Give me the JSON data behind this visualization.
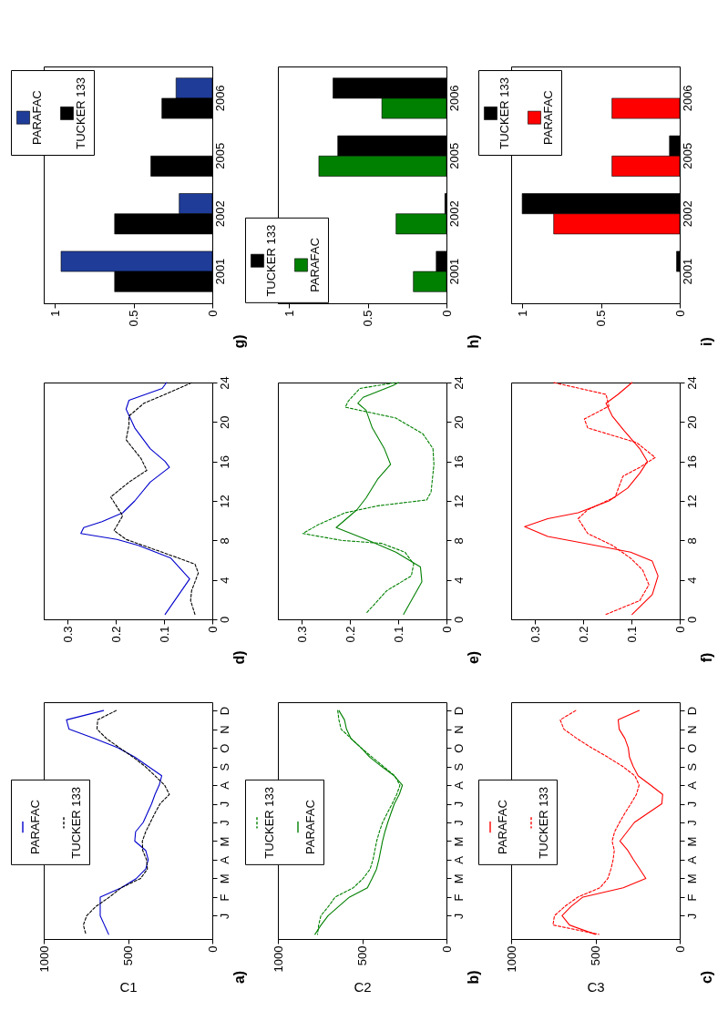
{
  "chart_data": [
    {
      "type": "bar",
      "orientation": "horizontal",
      "annotations": [
        "g)"
      ],
      "categories": [
        "2006",
        "2005",
        "2002",
        "2001"
      ],
      "xlim": [
        1.07,
        0
      ],
      "xticks": [
        0,
        0.5,
        1
      ],
      "legend": "top left",
      "series": [
        {
          "name": "PARAFAC",
          "color": "#1f3c99",
          "values": [
            0.23,
            null,
            0.21,
            0.96
          ]
        },
        {
          "name": "TUCKER 133",
          "color": "#000000",
          "values": [
            0.32,
            0.39,
            0.62,
            0.62
          ]
        }
      ]
    },
    {
      "type": "bar",
      "orientation": "horizontal",
      "annotations": [
        "h)"
      ],
      "categories": [
        "2006",
        "2005",
        "2002",
        "2001"
      ],
      "xlim": [
        1.07,
        0
      ],
      "xticks": [
        0,
        0.5,
        1
      ],
      "legend": "bottom left",
      "series": [
        {
          "name": "TUCKER 133",
          "color": "#000000",
          "values": [
            0.72,
            0.69,
            0.01,
            0.065
          ]
        },
        {
          "name": "PARAFAC",
          "color": "#008000",
          "values": [
            0.41,
            0.81,
            0.32,
            0.21
          ]
        }
      ]
    },
    {
      "type": "bar",
      "orientation": "horizontal",
      "annotations": [
        "i)"
      ],
      "categories": [
        "2006",
        "2005",
        "2002",
        "2001"
      ],
      "xlim": [
        1.07,
        0
      ],
      "xticks": [
        0,
        0.5,
        1
      ],
      "legend": "top left",
      "series": [
        {
          "name": "TUCKER 133",
          "color": "#000000",
          "values": [
            null,
            0.065,
            1.0,
            0.02
          ]
        },
        {
          "name": "PARAFAC",
          "color": "#ff0000",
          "values": [
            0.43,
            0.43,
            0.8,
            null
          ]
        }
      ]
    },
    {
      "type": "line",
      "annotations": [
        "d)"
      ],
      "xlim": [
        0.35,
        0
      ],
      "xticks": [
        0,
        0.1,
        0.2,
        0.3
      ],
      "ylim": [
        0,
        24
      ],
      "yticks": [
        0,
        4,
        8,
        12,
        16,
        20,
        24
      ],
      "series": [
        {
          "color": "#0000cc",
          "line_style": "solid",
          "x": [
            0.098,
            0.047,
            0.086,
            0.154,
            0.198,
            0.273,
            0.267,
            0.229,
            0.186,
            0.161,
            0.129,
            0.089,
            0.098,
            0.129,
            0.161,
            0.179,
            0.173,
            0.104,
            0.095
          ],
          "values": [
            0.5,
            4.1,
            6.2,
            7.5,
            8.1,
            8.7,
            9.3,
            9.9,
            10.8,
            12,
            13.9,
            15.4,
            16,
            17.3,
            19.4,
            21.3,
            22.2,
            23.4,
            24
          ]
        },
        {
          "color": "#000000",
          "line_style": "dashed",
          "x": [
            0.036,
            0.045,
            0.043,
            0.029,
            0.036,
            0.104,
            0.179,
            0.204,
            0.186,
            0.211,
            0.173,
            0.136,
            0.148,
            0.179,
            0.173,
            0.173,
            0.142,
            0.098,
            0.042
          ],
          "values": [
            0.5,
            1.9,
            2.9,
            4.7,
            5.6,
            6.8,
            8.1,
            9,
            10.5,
            12.4,
            13.9,
            15.1,
            16.3,
            18.2,
            19.7,
            20.6,
            21.9,
            22.8,
            24
          ]
        }
      ]
    },
    {
      "type": "line",
      "annotations": [
        "e)"
      ],
      "xlim": [
        0.35,
        0
      ],
      "xticks": [
        0,
        0.1,
        0.2,
        0.3
      ],
      "ylim": [
        0,
        24
      ],
      "yticks": [
        0,
        4,
        8,
        12,
        16,
        20,
        24
      ],
      "series": [
        {
          "color": "#008000",
          "line_style": "solid",
          "x": [
            0.089,
            0.051,
            0.054,
            0.105,
            0.167,
            0.229,
            0.186,
            0.167,
            0.143,
            0.116,
            0.129,
            0.154,
            0.167,
            0.184,
            0.173,
            0.111,
            0.1
          ],
          "values": [
            0.5,
            3.8,
            5.3,
            6.8,
            8.1,
            9.3,
            11.1,
            12.3,
            14.2,
            15.7,
            17.3,
            19.4,
            21.2,
            21.9,
            22.5,
            23.7,
            24
          ]
        },
        {
          "color": "#008000",
          "line_style": "dashed",
          "x": [
            0.165,
            0.124,
            0.073,
            0.068,
            0.086,
            0.135,
            0.218,
            0.298,
            0.266,
            0.21,
            0.143,
            0.041,
            0.032,
            0.026,
            0.028,
            0.049,
            0.105,
            0.21,
            0.204,
            0.18,
            0.105
          ],
          "values": [
            0.7,
            2.9,
            4.4,
            5.6,
            6.8,
            7.7,
            8.0,
            8.7,
            9.6,
            10.8,
            11.5,
            12.1,
            12.9,
            15.7,
            17.3,
            18.8,
            20.4,
            21.5,
            22.1,
            23.4,
            24
          ]
        }
      ]
    },
    {
      "type": "line",
      "annotations": [
        "f)"
      ],
      "xlim": [
        0.35,
        0
      ],
      "xticks": [
        0,
        0.1,
        0.2,
        0.3
      ],
      "ylim": [
        0,
        24
      ],
      "yticks": [
        0,
        4,
        8,
        12,
        16,
        20,
        24
      ],
      "series": [
        {
          "color": "#ff0000",
          "line_style": "solid",
          "x": [
            0.099,
            0.057,
            0.045,
            0.057,
            0.102,
            0.198,
            0.274,
            0.322,
            0.274,
            0.211,
            0.147,
            0.108,
            0.083,
            0.067,
            0.083,
            0.115,
            0.14,
            0.153,
            0.128,
            0.099
          ],
          "values": [
            0.5,
            2.5,
            4.4,
            5.9,
            6.8,
            7.7,
            8.4,
            9.4,
            10.2,
            10.8,
            12,
            13.3,
            14.8,
            16,
            17.3,
            19.1,
            20.6,
            21.9,
            22.8,
            24
          ]
        },
        {
          "color": "#ff0000",
          "line_style": "dashed",
          "x": [
            0.153,
            0.083,
            0.064,
            0.077,
            0.102,
            0.14,
            0.191,
            0.211,
            0.191,
            0.134,
            0.118,
            0.083,
            0.051,
            0.089,
            0.191,
            0.198,
            0.147,
            0.153,
            0.262
          ],
          "values": [
            0.5,
            1.9,
            3.5,
            5,
            6.2,
            7.5,
            8.7,
            10.2,
            11.1,
            12.4,
            14.5,
            15.4,
            16.4,
            17.9,
            19.4,
            20.3,
            21.6,
            22.8,
            24
          ]
        }
      ]
    },
    {
      "type": "line",
      "orientation": "horizontal",
      "xlabel": "C1",
      "annotations": [
        "a)"
      ],
      "xlim": [
        1000,
        0
      ],
      "xticks": [
        0,
        500,
        1000
      ],
      "legend": "left",
      "categories": [
        "D",
        null,
        "N",
        null,
        "O",
        null,
        "S",
        null,
        "A",
        null,
        "J",
        null,
        "J",
        null,
        "M",
        null,
        "A",
        null,
        "M",
        null,
        "F",
        null,
        "J",
        null,
        null
      ],
      "series": [
        {
          "name": "PARAFAC",
          "color": "#0000cc",
          "line_style": "solid",
          "values": [
            645,
            865,
            850,
            700,
            560,
            460,
            380,
            300,
            315,
            340,
            360,
            385,
            410,
            455,
            460,
            395,
            380,
            395,
            450,
            540,
            665,
            665,
            665,
            640,
            615
          ]
        },
        {
          "name": "TUCKER 133",
          "color": "#000000",
          "line_style": "dashed",
          "values": [
            570,
            680,
            684,
            628,
            550,
            470,
            398,
            340,
            283,
            255,
            310,
            340,
            368,
            395,
            415,
            413,
            390,
            385,
            425,
            540,
            610,
            690,
            745,
            765,
            750
          ]
        }
      ]
    },
    {
      "type": "line",
      "orientation": "horizontal",
      "xlabel": "C2",
      "annotations": [
        "b)"
      ],
      "xlim": [
        1000,
        0
      ],
      "xticks": [
        0,
        500,
        1000
      ],
      "legend": "left",
      "categories": [
        "D",
        null,
        "N",
        null,
        "O",
        null,
        "S",
        null,
        "A",
        null,
        "J",
        null,
        "J",
        null,
        "M",
        null,
        "A",
        null,
        "M",
        null,
        "F",
        null,
        "J",
        null,
        null
      ],
      "series": [
        {
          "name": "TUCKER 133",
          "color": "#008000",
          "line_style": "dashed",
          "values": [
            645,
            638,
            625,
            566,
            507,
            441,
            374,
            307,
            276,
            295,
            322,
            351,
            379,
            398,
            414,
            425,
            436,
            453,
            494,
            552,
            660,
            700,
            745,
            758,
            765
          ]
        },
        {
          "name": "PARAFAC",
          "color": "#008000",
          "line_style": "solid",
          "values": [
            638,
            605,
            593,
            567,
            506,
            455,
            385,
            310,
            261,
            280,
            309,
            329,
            348,
            365,
            379,
            390,
            401,
            415,
            441,
            469,
            575,
            639,
            702,
            744,
            780
          ]
        }
      ]
    },
    {
      "type": "line",
      "orientation": "horizontal",
      "xlabel": "C3",
      "annotations": [
        "c)"
      ],
      "xlim": [
        1000,
        0
      ],
      "xticks": [
        0,
        500,
        1000
      ],
      "legend": "left",
      "categories": [
        "D",
        null,
        "N",
        null,
        "O",
        null,
        "S",
        null,
        "A",
        null,
        "J",
        null,
        "J",
        null,
        "M",
        null,
        "A",
        null,
        "M",
        null,
        "F",
        null,
        "J",
        null,
        null
      ],
      "series": [
        {
          "name": "PARAFAC",
          "color": "#ff0000",
          "line_style": "solid",
          "values": [
            240,
            365,
            359,
            325,
            305,
            298,
            276,
            247,
            173,
            101,
            106,
            188,
            269,
            312,
            355,
            308,
            274,
            237,
            201,
            335,
            574,
            644,
            698,
            654,
            500
          ]
        },
        {
          "name": "TUCKER 133",
          "color": "#ff0000",
          "line_style": "dashed",
          "values": [
            617,
            709,
            687,
            610,
            523,
            427,
            338,
            266,
            241,
            257,
            290,
            325,
            357,
            386,
            401,
            388,
            395,
            408,
            426,
            472,
            604,
            681,
            743,
            752,
            480
          ]
        }
      ]
    }
  ]
}
